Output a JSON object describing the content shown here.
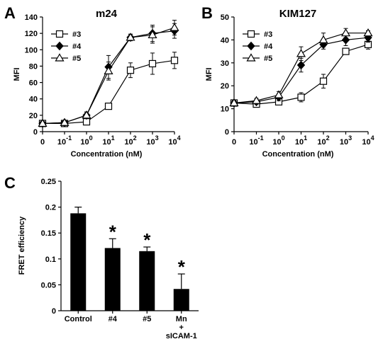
{
  "chart_data": [
    {
      "panel": "A",
      "type": "line",
      "title": "m24",
      "xlabel": "Concentration (nM)",
      "ylabel": "MFI",
      "x": [
        0.01,
        0.1,
        1,
        10,
        100,
        1000,
        10000
      ],
      "x_tick_labels": [
        {
          "base": "0",
          "exp": ""
        },
        {
          "base": "10",
          "exp": "-1"
        },
        {
          "base": "10",
          "exp": "0"
        },
        {
          "base": "10",
          "exp": "1"
        },
        {
          "base": "10",
          "exp": "2"
        },
        {
          "base": "10",
          "exp": "3"
        },
        {
          "base": "10",
          "exp": "4"
        }
      ],
      "xscale": "log",
      "ylim": [
        0,
        140
      ],
      "y_ticks": [
        "0",
        "20",
        "40",
        "60",
        "80",
        "100",
        "120",
        "140"
      ],
      "legend_position": "top-left",
      "series": [
        {
          "name": "#3",
          "marker": "open-square",
          "values": [
            10,
            10,
            12,
            31,
            75,
            83,
            87
          ],
          "errors": [
            2,
            2,
            3,
            3,
            9,
            13,
            10
          ]
        },
        {
          "name": "#4",
          "marker": "filled-diamond",
          "values": [
            10,
            11,
            20,
            79,
            115,
            120,
            123
          ],
          "errors": [
            2,
            2,
            4,
            14,
            4,
            10,
            9
          ]
        },
        {
          "name": "#5",
          "marker": "open-triangle",
          "values": [
            10,
            11,
            20,
            74,
            115,
            118,
            127
          ],
          "errors": [
            2,
            2,
            4,
            11,
            4,
            10,
            9
          ]
        }
      ]
    },
    {
      "panel": "B",
      "type": "line",
      "title": "KIM127",
      "xlabel": "Concentration (nM)",
      "ylabel": "MFI",
      "x": [
        0.01,
        0.1,
        1,
        10,
        100,
        1000,
        10000
      ],
      "x_tick_labels": [
        {
          "base": "0",
          "exp": ""
        },
        {
          "base": "10",
          "exp": "-1"
        },
        {
          "base": "10",
          "exp": "0"
        },
        {
          "base": "10",
          "exp": "1"
        },
        {
          "base": "10",
          "exp": "2"
        },
        {
          "base": "10",
          "exp": "3"
        },
        {
          "base": "10",
          "exp": "4"
        }
      ],
      "xscale": "log",
      "ylim": [
        0,
        50
      ],
      "y_ticks": [
        "0",
        "10",
        "20",
        "30",
        "40",
        "50"
      ],
      "legend_position": "top-left",
      "series": [
        {
          "name": "#3",
          "marker": "open-square",
          "values": [
            12.5,
            12,
            13,
            15,
            22,
            35,
            38
          ],
          "errors": [
            1,
            1,
            1,
            2,
            3,
            1,
            2
          ]
        },
        {
          "name": "#4",
          "marker": "filled-diamond",
          "values": [
            12.5,
            13,
            15,
            29,
            38,
            40,
            41
          ],
          "errors": [
            1,
            1,
            1.5,
            3,
            2,
            2.5,
            2
          ]
        },
        {
          "name": "#5",
          "marker": "open-triangle",
          "values": [
            12.5,
            13.5,
            16,
            34,
            40,
            43,
            43
          ],
          "errors": [
            1,
            1,
            1.5,
            3,
            3,
            2,
            1
          ]
        }
      ]
    },
    {
      "panel": "C",
      "type": "bar",
      "title": "",
      "xlabel": "",
      "ylabel": "FRET efficiency",
      "categories": [
        "Control",
        "#4",
        "#5",
        "Mn + sICAM-1"
      ],
      "category_labels": [
        [
          "Control"
        ],
        [
          "#4"
        ],
        [
          "#5"
        ],
        [
          "Mn",
          "+",
          "sICAM-1"
        ]
      ],
      "values": [
        0.188,
        0.121,
        0.115,
        0.042
      ],
      "errors": [
        0.012,
        0.018,
        0.008,
        0.029
      ],
      "significance": [
        "",
        "*",
        "*",
        "*"
      ],
      "ylim": [
        0,
        0.25
      ],
      "y_ticks": [
        "0",
        "0.05",
        "0.1",
        "0.15",
        "0.2",
        "0.25"
      ]
    }
  ]
}
